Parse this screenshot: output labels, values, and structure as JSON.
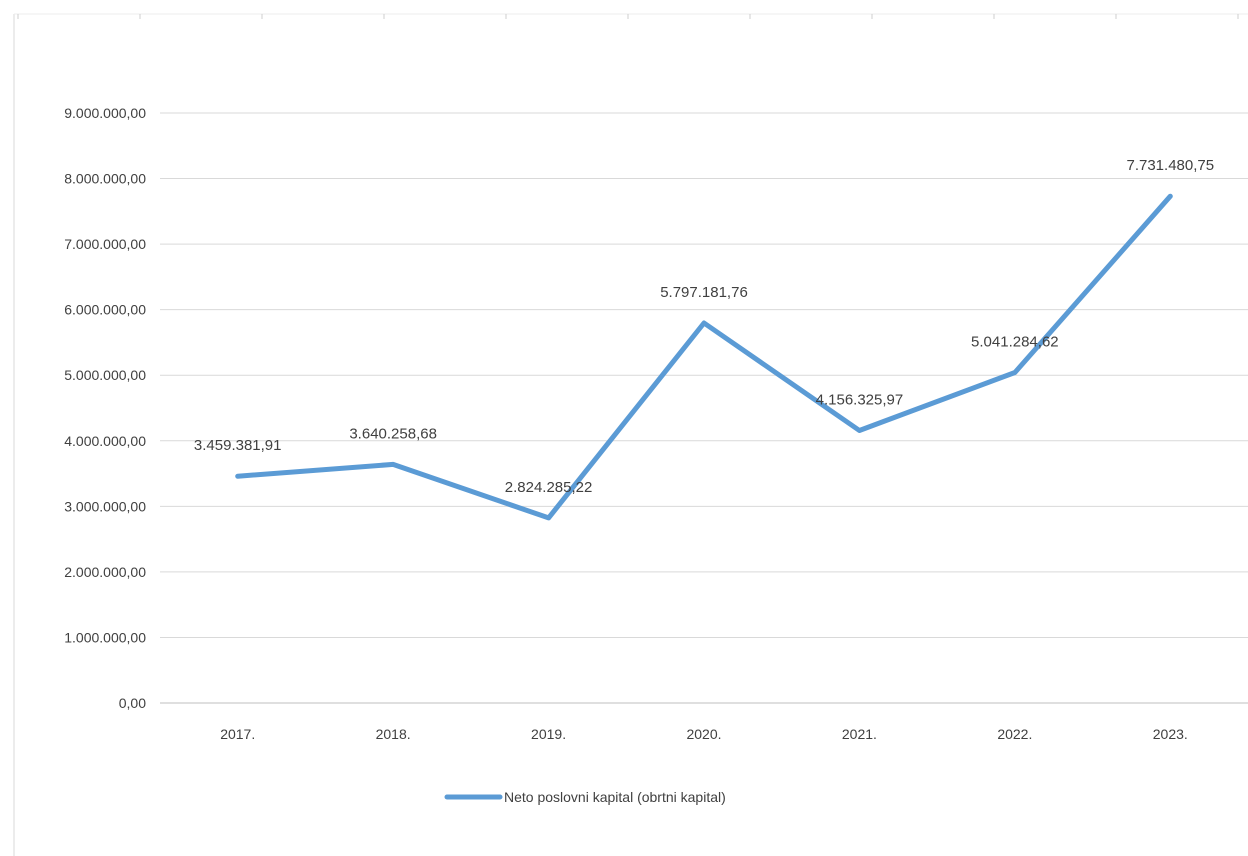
{
  "chart_data": {
    "type": "line",
    "title": "",
    "xlabel": "",
    "ylabel": "",
    "categories": [
      "2017.",
      "2018.",
      "2019.",
      "2020.",
      "2021.",
      "2022.",
      "2023."
    ],
    "series": [
      {
        "name": "Neto poslovni kapital (obrtni kapital)",
        "values": [
          3459381.91,
          3640258.68,
          2824285.22,
          5797181.76,
          4156325.97,
          5041284.62,
          7731480.75
        ],
        "data_labels": [
          "3.459.381,91",
          "3.640.258,68",
          "2.824.285,22",
          "5.797.181,76",
          "4.156.325,97",
          "5.041.284,62",
          "7.731.480,75"
        ],
        "color": "#5B9BD5"
      }
    ],
    "ylim": [
      0,
      9000000
    ],
    "y_ticks": [
      0,
      1000000,
      2000000,
      3000000,
      4000000,
      5000000,
      6000000,
      7000000,
      8000000,
      9000000
    ],
    "y_tick_labels": [
      "0,00",
      "1.000.000,00",
      "2.000.000,00",
      "3.000.000,00",
      "4.000.000,00",
      "5.000.000,00",
      "6.000.000,00",
      "7.000.000,00",
      "8.000.000,00",
      "9.000.000,00"
    ],
    "grid": true,
    "legend_position": "bottom",
    "colors": {
      "gridline": "#d9d9d9",
      "text": "#404040"
    }
  }
}
